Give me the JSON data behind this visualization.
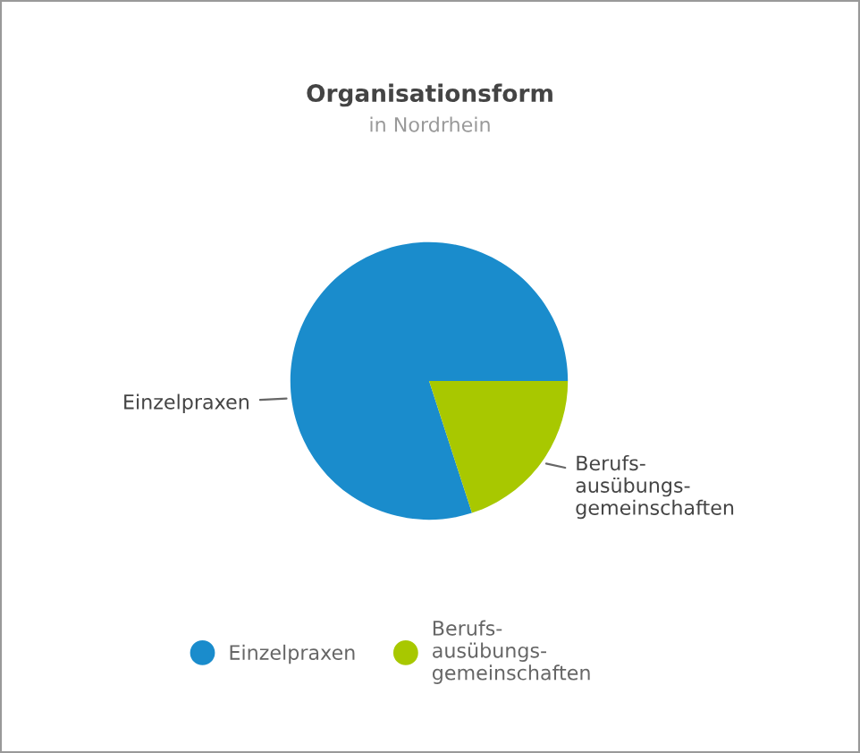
{
  "chart_data": {
    "type": "pie",
    "title": "Organisationsform",
    "subtitle": "in Nordrhein",
    "categories": [
      "Einzelpraxen",
      "Berufs-ausübungs-gemeinschaften"
    ],
    "values": [
      80,
      20
    ],
    "colors": [
      "#1a8ccc",
      "#a8c800"
    ],
    "legend": "bottom"
  }
}
